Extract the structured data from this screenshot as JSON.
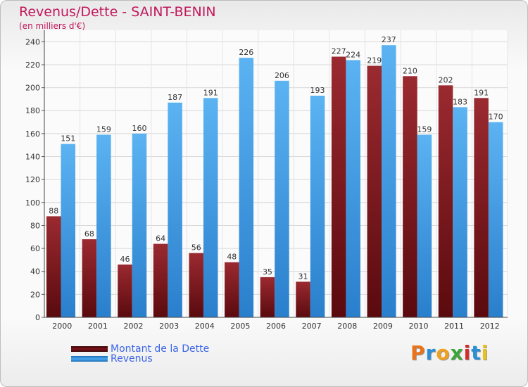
{
  "chart_data": {
    "type": "bar",
    "title": "Revenus/Dette - SAINT-BENIN",
    "subtitle": "(en milliers d'€)",
    "categories": [
      "2000",
      "2001",
      "2002",
      "2003",
      "2004",
      "2005",
      "2006",
      "2007",
      "2008",
      "2009",
      "2010",
      "2011",
      "2012"
    ],
    "series": [
      {
        "name": "Montant de la Dette",
        "color": "#6b0f14",
        "values": [
          88,
          68,
          46,
          64,
          56,
          48,
          35,
          31,
          227,
          219,
          210,
          202,
          191
        ]
      },
      {
        "name": "Revenus",
        "color": "#3d9be9",
        "values": [
          151,
          159,
          160,
          187,
          191,
          226,
          206,
          193,
          224,
          237,
          159,
          183,
          170
        ]
      }
    ],
    "yticks": [
      0,
      20,
      40,
      60,
      80,
      100,
      120,
      140,
      160,
      180,
      200,
      220,
      240
    ],
    "ylim": [
      0,
      250
    ],
    "grid": true,
    "legend_position": "bottom-left"
  },
  "legend": {
    "items": [
      {
        "label": "Montant de la Dette",
        "color": "#6b0f14"
      },
      {
        "label": "Revenus",
        "color": "#3d9be9"
      }
    ]
  },
  "branding": {
    "letters": [
      "P",
      "r",
      "o",
      "x",
      "i",
      "t",
      "i"
    ],
    "colors": [
      "#e8731a",
      "#2a8fd6",
      "#f0a020",
      "#3aa63a",
      "#d62a2a",
      "#2a8fd6",
      "#e8c21a"
    ]
  }
}
